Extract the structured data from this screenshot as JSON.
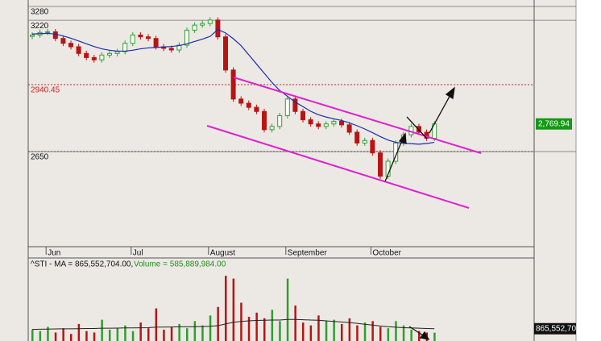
{
  "chart_data": [
    {
      "type": "candlestick",
      "categories": [
        null,
        null,
        "Jun",
        null,
        null,
        null,
        null,
        null,
        null,
        null,
        null,
        null,
        null,
        "Jul",
        null,
        null,
        null,
        null,
        null,
        null,
        null,
        null,
        null,
        "August",
        null,
        null,
        null,
        null,
        null,
        null,
        null,
        null,
        null,
        "September",
        null,
        null,
        null,
        null,
        null,
        null,
        null,
        null,
        null,
        null,
        "October",
        null,
        null,
        null,
        null,
        null,
        null,
        null,
        null
      ],
      "open": [
        3150,
        3156,
        3167,
        3170,
        3141,
        3120,
        3105,
        3076,
        3058,
        3048,
        3069,
        3076,
        3084,
        3120,
        3156,
        3148,
        3141,
        3105,
        3098,
        3091,
        3112,
        3177,
        3199,
        3206,
        3221,
        3148,
        3004,
        2878,
        2860,
        2842,
        2824,
        2745,
        2759,
        2806,
        2878,
        2824,
        2788,
        2770,
        2759,
        2770,
        2781,
        2766,
        2734,
        2687,
        2698,
        2644,
        2543,
        2608,
        2687,
        2723,
        2759,
        2734,
        2708
      ],
      "high": [
        3168,
        3179,
        3182,
        3182,
        3153,
        3132,
        3117,
        3088,
        3070,
        3081,
        3088,
        3096,
        3132,
        3168,
        3168,
        3160,
        3153,
        3117,
        3110,
        3124,
        3189,
        3211,
        3218,
        3233,
        3233,
        3160,
        3016,
        2890,
        2872,
        2854,
        2836,
        2771,
        2818,
        2890,
        2890,
        2836,
        2800,
        2782,
        2782,
        2793,
        2793,
        2778,
        2746,
        2710,
        2710,
        2656,
        2620,
        2699,
        2735,
        2771,
        2771,
        2746,
        2782
      ],
      "low": [
        3138,
        3144,
        3155,
        3129,
        3108,
        3093,
        3064,
        3046,
        3036,
        3036,
        3057,
        3064,
        3072,
        3108,
        3136,
        3129,
        3093,
        3086,
        3079,
        3079,
        3100,
        3165,
        3187,
        3194,
        3136,
        2992,
        2866,
        2848,
        2830,
        2812,
        2733,
        2733,
        2747,
        2794,
        2812,
        2776,
        2758,
        2747,
        2747,
        2758,
        2754,
        2722,
        2675,
        2675,
        2632,
        2531,
        2531,
        2596,
        2675,
        2711,
        2722,
        2696,
        2696
      ],
      "close": [
        3156,
        3167,
        3170,
        3141,
        3120,
        3105,
        3076,
        3058,
        3048,
        3069,
        3076,
        3084,
        3120,
        3156,
        3148,
        3141,
        3105,
        3098,
        3091,
        3112,
        3177,
        3199,
        3206,
        3221,
        3148,
        3004,
        2878,
        2860,
        2842,
        2824,
        2745,
        2759,
        2806,
        2878,
        2824,
        2788,
        2770,
        2759,
        2770,
        2781,
        2766,
        2734,
        2687,
        2698,
        2644,
        2543,
        2608,
        2687,
        2723,
        2759,
        2734,
        2708,
        2770
      ],
      "up_color": "#2f9e2f",
      "down_color": "#b81414",
      "ma": {
        "color": "#1a2bb0",
        "values": [
          3160,
          3162,
          3163,
          3160,
          3152,
          3142,
          3130,
          3118,
          3106,
          3096,
          3090,
          3086,
          3086,
          3090,
          3096,
          3100,
          3102,
          3104,
          3106,
          3110,
          3118,
          3128,
          3138,
          3150,
          3180,
          3165,
          3140,
          3110,
          3070,
          3030,
          2990,
          2950,
          2915,
          2890,
          2865,
          2845,
          2825,
          2810,
          2800,
          2792,
          2785,
          2775,
          2762,
          2748,
          2732,
          2715,
          2700,
          2690,
          2686,
          2684,
          2682,
          2685,
          2690
        ]
      },
      "ylim": [
        2237,
        3280
      ],
      "yticks": [
        3280,
        3220,
        2650
      ],
      "reference_line": {
        "value": 2940.45,
        "color": "#d02020"
      },
      "last_price": {
        "value": 2769.94,
        "label": "2,769.94",
        "color": "#129a12"
      }
    },
    {
      "type": "volume",
      "ma_label": "^STI - MA = 865,552,704.00,",
      "volume_label": "Volume = 585,889,984.00",
      "values": [
        800000000,
        700000000,
        1000000000,
        600000000,
        900000000,
        500000000,
        1200000000,
        700000000,
        600000000,
        1500000000,
        800000000,
        900000000,
        1100000000,
        700000000,
        1300000000,
        900000000,
        2300000000,
        800000000,
        1000000000,
        1200000000,
        900000000,
        1400000000,
        1100000000,
        1800000000,
        2400000000,
        4600000000,
        4400000000,
        2700000000,
        1700000000,
        2000000000,
        1600000000,
        2200000000,
        1400000000,
        4400000000,
        2500000000,
        1300000000,
        1100000000,
        1800000000,
        1400000000,
        1500000000,
        1200000000,
        1600000000,
        1100000000,
        1300000000,
        1400000000,
        1000000000,
        900000000,
        1400000000,
        1100000000,
        800000000,
        700000000,
        600000000,
        585889984
      ],
      "ma": {
        "color": "#222222",
        "values": [
          820000000,
          830000000,
          840000000,
          850000000,
          860000000,
          860000000,
          870000000,
          880000000,
          880000000,
          900000000,
          900000000,
          910000000,
          920000000,
          920000000,
          930000000,
          940000000,
          980000000,
          980000000,
          990000000,
          1000000000,
          1000000000,
          1010000000,
          1020000000,
          1040000000,
          1080000000,
          1200000000,
          1320000000,
          1380000000,
          1420000000,
          1450000000,
          1460000000,
          1480000000,
          1480000000,
          1520000000,
          1520000000,
          1500000000,
          1480000000,
          1460000000,
          1420000000,
          1380000000,
          1340000000,
          1300000000,
          1240000000,
          1180000000,
          1120000000,
          1060000000,
          1010000000,
          970000000,
          940000000,
          920000000,
          900000000,
          880000000,
          865552704
        ]
      },
      "last_ma_label": "865,552,70",
      "ylim": [
        0,
        5000000000
      ]
    }
  ]
}
